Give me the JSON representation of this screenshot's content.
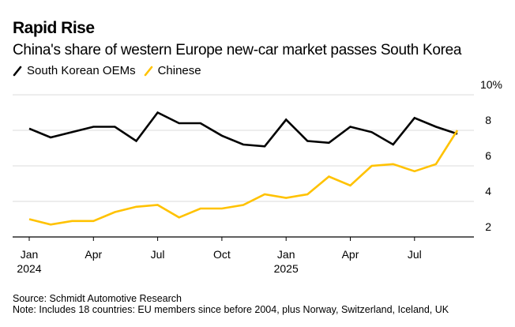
{
  "chart_data": {
    "type": "line",
    "title": "Rapid Rise",
    "subtitle": "China's share of western Europe new-car market passes South Korea",
    "xlabel": "",
    "ylabel": "",
    "x": [
      "2024-01",
      "2024-02",
      "2024-03",
      "2024-04",
      "2024-05",
      "2024-06",
      "2024-07",
      "2024-08",
      "2024-09",
      "2024-10",
      "2024-11",
      "2024-12",
      "2025-01",
      "2025-02",
      "2025-03",
      "2025-04",
      "2025-05",
      "2025-06",
      "2025-07",
      "2025-08",
      "2025-09"
    ],
    "x_ticks": [
      {
        "index": 0,
        "label": "Jan",
        "sublabel": "2024"
      },
      {
        "index": 3,
        "label": "Apr",
        "sublabel": ""
      },
      {
        "index": 6,
        "label": "Jul",
        "sublabel": ""
      },
      {
        "index": 9,
        "label": "Oct",
        "sublabel": ""
      },
      {
        "index": 12,
        "label": "Jan",
        "sublabel": "2025"
      },
      {
        "index": 15,
        "label": "Apr",
        "sublabel": ""
      },
      {
        "index": 18,
        "label": "Jul",
        "sublabel": ""
      }
    ],
    "y_ticks": [
      {
        "value": 10,
        "label": "10%"
      },
      {
        "value": 8,
        "label": "8"
      },
      {
        "value": 6,
        "label": "6"
      },
      {
        "value": 4,
        "label": "4"
      },
      {
        "value": 2,
        "label": "2"
      }
    ],
    "ylim": [
      2,
      10
    ],
    "grid": true,
    "legend_position": "top-left",
    "series": [
      {
        "name": "South Korean OEMs",
        "color": "#000000",
        "values": [
          8.1,
          7.6,
          7.9,
          8.2,
          8.2,
          7.4,
          9.0,
          8.4,
          8.4,
          7.7,
          7.2,
          7.1,
          8.6,
          7.4,
          7.3,
          8.2,
          7.9,
          7.2,
          8.7,
          8.2,
          7.8
        ]
      },
      {
        "name": "Chinese",
        "color": "#FFC200",
        "values": [
          3.0,
          2.7,
          2.9,
          2.9,
          3.4,
          3.7,
          3.8,
          3.1,
          3.6,
          3.6,
          3.8,
          4.4,
          4.2,
          4.4,
          5.4,
          4.9,
          6.0,
          6.1,
          5.7,
          6.1,
          8.0
        ]
      }
    ],
    "source": "Source: Schmidt Automotive Research",
    "note": "Note: Includes 18 countries: EU members since before 2004, plus Norway, Switzerland, Iceland, UK"
  },
  "colors": {
    "gridline": "#e2e2e2",
    "axis": "#000000"
  }
}
